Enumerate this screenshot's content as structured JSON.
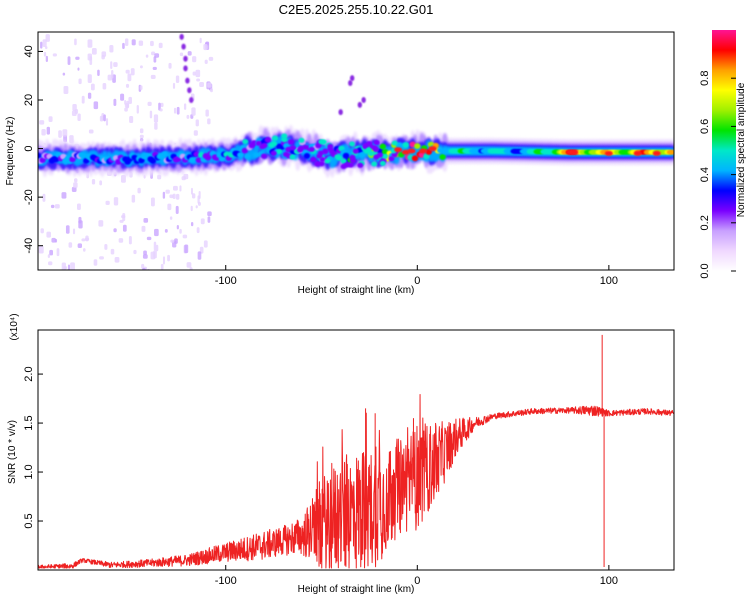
{
  "chart_data": [
    {
      "type": "heatmap",
      "title": "C2E5.2025.255.10.22.G01",
      "xlabel": "Height of straight line (km)",
      "ylabel": "Frequency (Hz)",
      "xlim": [
        -198,
        134
      ],
      "ylim": [
        -50,
        48
      ],
      "xticks": [
        -100,
        0,
        100
      ],
      "xtick_labels": [
        "-100",
        "0",
        "100"
      ],
      "yticks": [
        -40,
        -20,
        0,
        20,
        40
      ],
      "ytick_labels": [
        "-40",
        "-20",
        "0",
        "20",
        "40"
      ],
      "colorbar": {
        "label": "Normalized spectral amplitude",
        "range": [
          0,
          1
        ],
        "ticks": [
          0,
          0.2,
          0.4,
          0.6,
          0.8
        ],
        "tick_labels": [
          "0.0",
          "0.2",
          "0.4",
          "0.6",
          "0.8"
        ],
        "colormap": [
          "#ffffff",
          "#f0d8ff",
          "#c8a0ff",
          "#7a00ff",
          "#0000ff",
          "#00b4ff",
          "#00e8c8",
          "#00e400",
          "#a0f000",
          "#ffff00",
          "#ffa000",
          "#ff0000",
          "#ff1493"
        ]
      },
      "ridge_frequency_hz": [
        {
          "x": -195,
          "y": -4
        },
        {
          "x": -150,
          "y": -4
        },
        {
          "x": -100,
          "y": -3
        },
        {
          "x": -80,
          "y": 1
        },
        {
          "x": -60,
          "y": 0
        },
        {
          "x": -45,
          "y": -3
        },
        {
          "x": -25,
          "y": -2
        },
        {
          "x": 0,
          "y": -1
        },
        {
          "x": 40,
          "y": -1
        },
        {
          "x": 80,
          "y": -1.5
        },
        {
          "x": 100,
          "y": -1.5
        },
        {
          "x": 134,
          "y": -1.5
        }
      ],
      "ridge_max_amplitude": [
        {
          "x": -195,
          "y": 0.35
        },
        {
          "x": -100,
          "y": 0.4
        },
        {
          "x": -60,
          "y": 0.35
        },
        {
          "x": -30,
          "y": 0.5
        },
        {
          "x": -10,
          "y": 0.8
        },
        {
          "x": 0,
          "y": 0.9
        },
        {
          "x": 20,
          "y": 0.55
        },
        {
          "x": 60,
          "y": 0.5
        },
        {
          "x": 80,
          "y": 0.95
        },
        {
          "x": 100,
          "y": 0.8
        },
        {
          "x": 134,
          "y": 0.95
        }
      ]
    },
    {
      "type": "line",
      "xlabel": "Height of straight line (km)",
      "ylabel": "SNR (10 * v/v)",
      "y_multiplier": "(x10⁴)",
      "xlim": [
        -198,
        134
      ],
      "ylim": [
        0,
        2.45
      ],
      "xticks": [
        -100,
        0,
        100
      ],
      "xtick_labels": [
        "-100",
        "0",
        "100"
      ],
      "yticks": [
        0.5,
        1.0,
        1.5,
        2.0
      ],
      "ytick_labels": [
        "0.5",
        "1.0",
        "1.5",
        "2.0"
      ],
      "color": "#ee2222",
      "series": [
        {
          "name": "SNR",
          "points": [
            {
              "x": -198,
              "y": 0.03,
              "a": 0.02
            },
            {
              "x": -180,
              "y": 0.04,
              "a": 0.03
            },
            {
              "x": -175,
              "y": 0.1,
              "a": 0.02
            },
            {
              "x": -160,
              "y": 0.05,
              "a": 0.03
            },
            {
              "x": -140,
              "y": 0.07,
              "a": 0.04
            },
            {
              "x": -120,
              "y": 0.1,
              "a": 0.06
            },
            {
              "x": -100,
              "y": 0.18,
              "a": 0.1
            },
            {
              "x": -80,
              "y": 0.25,
              "a": 0.15
            },
            {
              "x": -70,
              "y": 0.3,
              "a": 0.15
            },
            {
              "x": -60,
              "y": 0.35,
              "a": 0.2
            },
            {
              "x": -50,
              "y": 0.45,
              "a": 0.5
            },
            {
              "x": -40,
              "y": 0.55,
              "a": 0.6
            },
            {
              "x": -30,
              "y": 0.6,
              "a": 0.65
            },
            {
              "x": -20,
              "y": 0.65,
              "a": 0.6
            },
            {
              "x": -10,
              "y": 0.85,
              "a": 0.5
            },
            {
              "x": 0,
              "y": 0.95,
              "a": 0.55
            },
            {
              "x": 10,
              "y": 1.1,
              "a": 0.4
            },
            {
              "x": 20,
              "y": 1.35,
              "a": 0.2
            },
            {
              "x": 30,
              "y": 1.5,
              "a": 0.06
            },
            {
              "x": 40,
              "y": 1.57,
              "a": 0.03
            },
            {
              "x": 60,
              "y": 1.62,
              "a": 0.03
            },
            {
              "x": 80,
              "y": 1.63,
              "a": 0.03
            },
            {
              "x": 92,
              "y": 1.63,
              "a": 0.06
            },
            {
              "x": 100,
              "y": 1.6,
              "a": 0.03
            },
            {
              "x": 120,
              "y": 1.62,
              "a": 0.03
            },
            {
              "x": 134,
              "y": 1.6,
              "a": 0.03
            }
          ],
          "features": [
            {
              "x": -27,
              "y": 1.65
            },
            {
              "x": -22,
              "y": 1.6
            },
            {
              "x": -2,
              "y": 1.55
            },
            {
              "x": 96.5,
              "y": 2.4
            },
            {
              "x": 97.5,
              "y": 0.03
            }
          ]
        }
      ]
    }
  ]
}
